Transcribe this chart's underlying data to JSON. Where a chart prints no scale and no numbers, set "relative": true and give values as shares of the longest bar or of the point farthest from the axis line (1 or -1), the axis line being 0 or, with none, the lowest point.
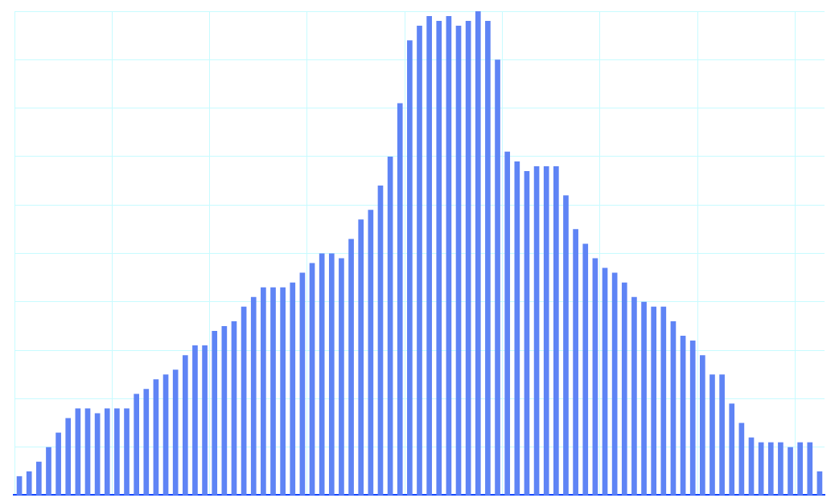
{
  "chart_data": {
    "type": "bar",
    "relative": true,
    "grid": true,
    "color": "#5f84f5",
    "categories": [
      null,
      null,
      null,
      null,
      null,
      null,
      null,
      null,
      null,
      null,
      null,
      null,
      null,
      null,
      null,
      null,
      null,
      null,
      null,
      null,
      null,
      null,
      null,
      null,
      null,
      null,
      null,
      null,
      null,
      null,
      null,
      null,
      null,
      null,
      null,
      null,
      null,
      null,
      null,
      null,
      null,
      null,
      null,
      null,
      null,
      null,
      null,
      null,
      null,
      null,
      null,
      null,
      null,
      null,
      null,
      null,
      null,
      null,
      null,
      null,
      null,
      null,
      null,
      null,
      null,
      null,
      null,
      null,
      null,
      null,
      null,
      null,
      null,
      null,
      null,
      null,
      null,
      null,
      null,
      null,
      null,
      null,
      null
    ],
    "values": [
      0.04,
      0.05,
      0.07,
      0.1,
      0.13,
      0.16,
      0.18,
      0.18,
      0.17,
      0.18,
      0.18,
      0.18,
      0.21,
      0.22,
      0.24,
      0.25,
      0.26,
      0.29,
      0.31,
      0.31,
      0.34,
      0.35,
      0.36,
      0.39,
      0.41,
      0.43,
      0.43,
      0.43,
      0.44,
      0.46,
      0.48,
      0.5,
      0.5,
      0.49,
      0.53,
      0.57,
      0.59,
      0.64,
      0.7,
      0.81,
      0.94,
      0.97,
      0.99,
      0.98,
      0.99,
      0.97,
      0.98,
      1,
      0.98,
      0.9,
      0.71,
      0.69,
      0.67,
      0.68,
      0.68,
      0.68,
      0.62,
      0.55,
      0.52,
      0.49,
      0.47,
      0.46,
      0.44,
      0.41,
      0.4,
      0.39,
      0.39,
      0.36,
      0.33,
      0.32,
      0.29,
      0.25,
      0.25,
      0.19,
      0.15,
      0.12,
      0.11,
      0.11,
      0.11,
      0.1,
      0.11,
      0.11,
      0.05
    ]
  }
}
